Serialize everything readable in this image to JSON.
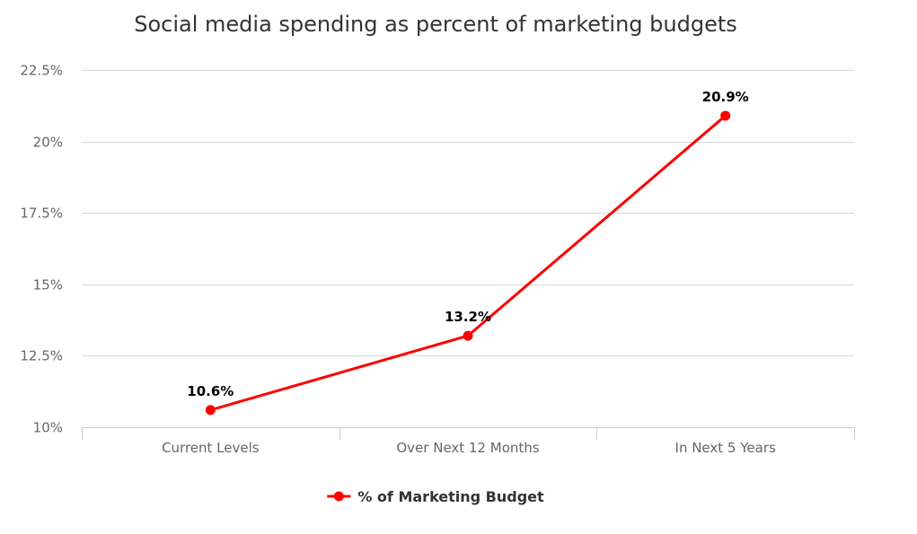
{
  "chart_data": {
    "type": "line",
    "title": "Social media spending as percent of marketing budgets",
    "categories": [
      "Current Levels",
      "Over Next 12 Months",
      "In Next 5 Years"
    ],
    "series": [
      {
        "name": "% of Marketing Budget",
        "values": [
          10.6,
          13.2,
          20.9
        ],
        "data_labels": [
          "10.6%",
          "13.2%",
          "20.9%"
        ],
        "color": "#ff0000"
      }
    ],
    "y_ticks": [
      10,
      12.5,
      15,
      17.5,
      20,
      22.5
    ],
    "y_tick_labels": [
      "10%",
      "12.5%",
      "15%",
      "17.5%",
      "20%",
      "22.5%"
    ],
    "ylim": [
      10,
      22.5
    ],
    "xlabel": "",
    "ylabel": "",
    "grid": true,
    "legend_position": "bottom-center",
    "colors": {
      "grid": "#d8d8d8",
      "axis": "#c0d0e0",
      "series": "#ff0000"
    }
  }
}
